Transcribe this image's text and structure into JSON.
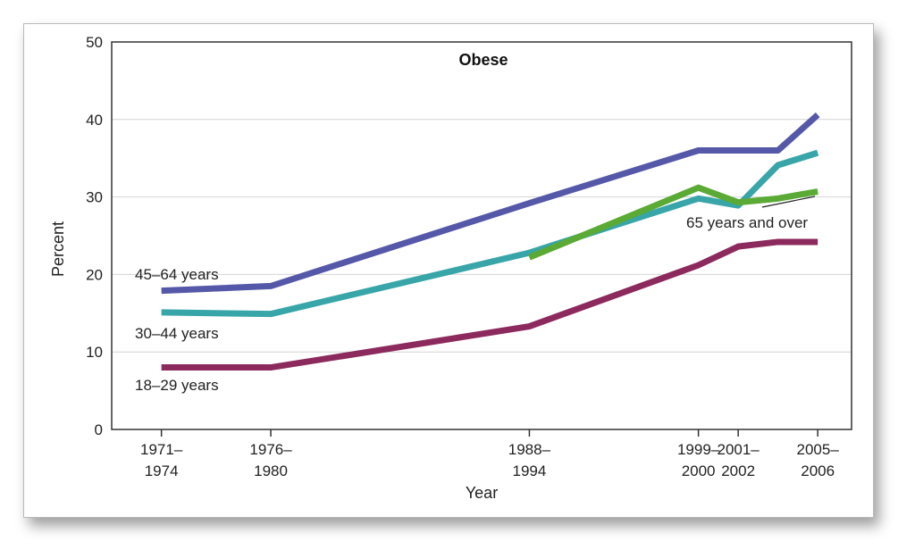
{
  "chart_data": {
    "type": "line",
    "title": "Obese",
    "xlabel": "Year",
    "ylabel": "Percent",
    "ylim": [
      0,
      50
    ],
    "yticks": [
      0,
      10,
      20,
      30,
      40,
      50
    ],
    "grid": true,
    "x_ticks": [
      {
        "x": 1972.5,
        "line1": "1971–",
        "line2": "1974"
      },
      {
        "x": 1978,
        "line1": "1976–",
        "line2": "1980"
      },
      {
        "x": 1991,
        "line1": "1988–",
        "line2": "1994"
      },
      {
        "x": 1999.5,
        "line1": "1999–",
        "line2": "2000"
      },
      {
        "x": 2001.5,
        "line1": "2001–",
        "line2": "2002"
      },
      {
        "x": 2005.5,
        "line1": "2005–",
        "line2": "2006"
      }
    ],
    "series": [
      {
        "name": "45–64 years",
        "color": "#5558a8",
        "points": [
          [
            1972.5,
            17.9
          ],
          [
            1978,
            18.5
          ],
          [
            1991,
            29.2
          ],
          [
            1999.5,
            36.0
          ],
          [
            2001.5,
            36.0
          ],
          [
            2003.5,
            36.0
          ],
          [
            2005.5,
            40.6
          ]
        ]
      },
      {
        "name": "30–44 years",
        "color": "#38a5a8",
        "points": [
          [
            1972.5,
            15.1
          ],
          [
            1978,
            14.9
          ],
          [
            1991,
            22.8
          ],
          [
            1999.5,
            29.8
          ],
          [
            2001.5,
            28.9
          ],
          [
            2003.5,
            34.1
          ],
          [
            2005.5,
            35.7
          ]
        ]
      },
      {
        "name": "65 years and over",
        "color": "#5aaa35",
        "points": [
          [
            1991,
            22.2
          ],
          [
            1999.5,
            31.2
          ],
          [
            2001.5,
            29.3
          ],
          [
            2003.5,
            29.8
          ],
          [
            2005.5,
            30.7
          ]
        ]
      },
      {
        "name": "18–29 years",
        "color": "#8c2a5e",
        "points": [
          [
            1972.5,
            8.0
          ],
          [
            1978,
            8.0
          ],
          [
            1991,
            13.3
          ],
          [
            1999.5,
            21.2
          ],
          [
            2001.5,
            23.6
          ],
          [
            2003.5,
            24.2
          ],
          [
            2005.5,
            24.2
          ]
        ]
      }
    ]
  }
}
